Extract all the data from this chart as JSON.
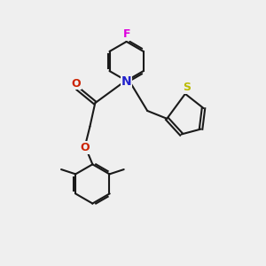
{
  "bg_color": "#efefef",
  "bond_color": "#1a1a1a",
  "bond_width": 1.5,
  "N_color": "#2222cc",
  "O_color": "#cc2200",
  "F_color": "#dd00dd",
  "S_color": "#bbbb00",
  "font_size": 9,
  "fig_size": [
    3.0,
    3.0
  ],
  "dpi": 100,
  "xlim": [
    0,
    10
  ],
  "ylim": [
    0,
    10
  ]
}
